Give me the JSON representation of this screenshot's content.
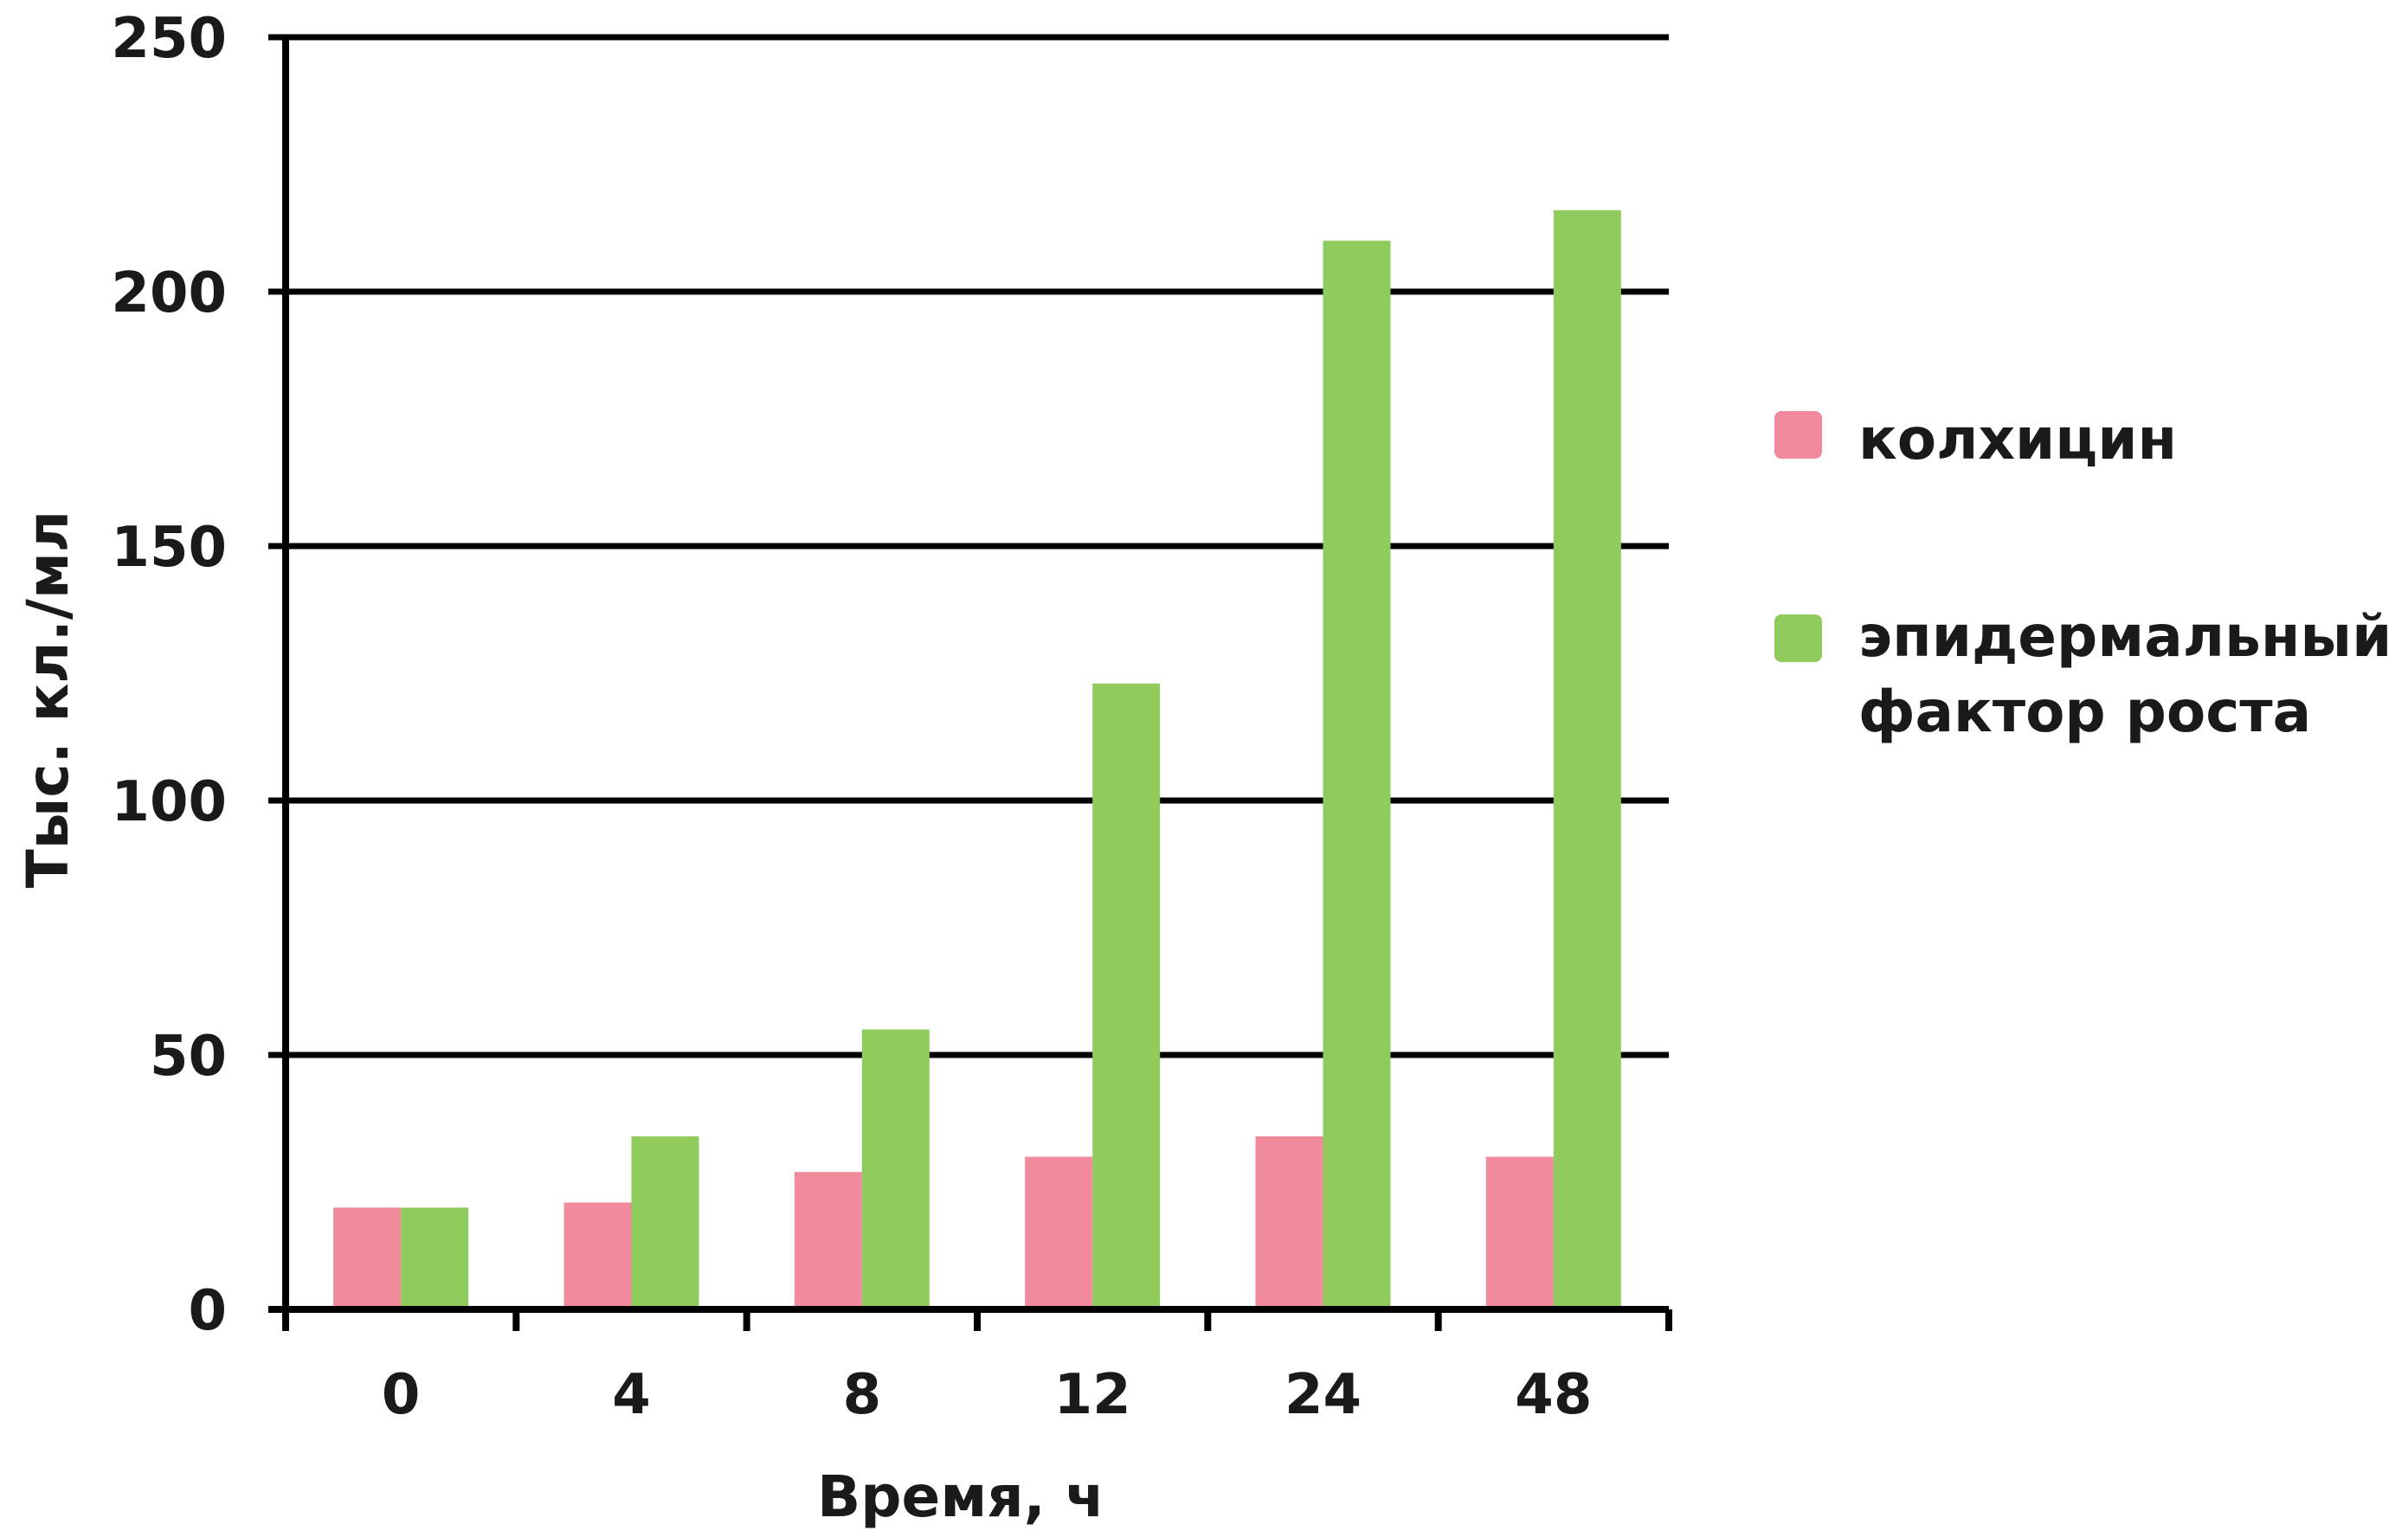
{
  "chart_data": {
    "type": "bar",
    "title": "",
    "xlabel": "Время, ч",
    "ylabel": "Тыс. кл./мл",
    "categories": [
      "0",
      "4",
      "8",
      "12",
      "24",
      "48"
    ],
    "ylim": [
      0,
      250
    ],
    "yticks": [
      "0",
      "50",
      "100",
      "150",
      "200",
      "250"
    ],
    "grid": true,
    "legend_position": "right",
    "series": [
      {
        "name": "колхицин",
        "color": "#f08a9c",
        "values": [
          20,
          21,
          27,
          30,
          34,
          30
        ]
      },
      {
        "name": "эпидермальный фактор роста",
        "legend_lines": [
          "эпидермальный",
          "фактор роста"
        ],
        "color": "#8fcb5d",
        "values": [
          20,
          34,
          55,
          123,
          210,
          216
        ]
      }
    ]
  }
}
